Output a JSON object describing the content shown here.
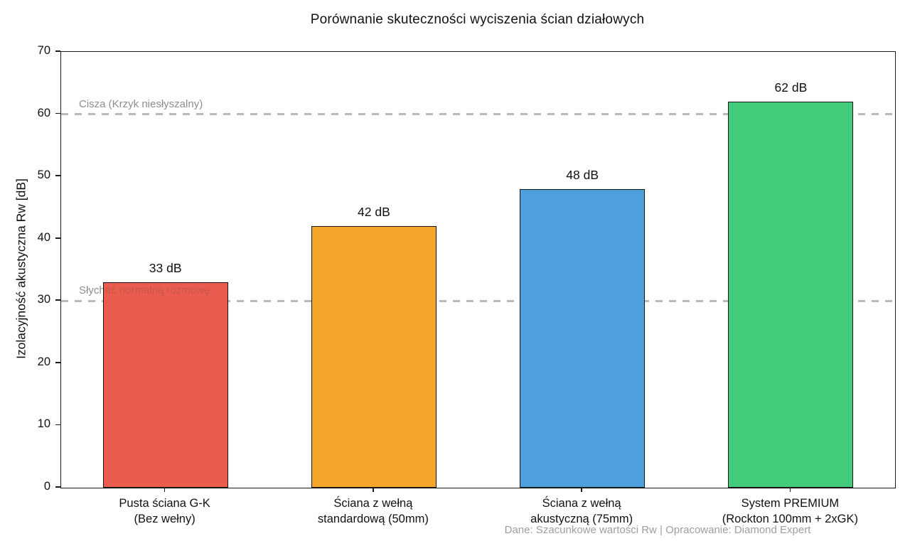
{
  "chart_data": {
    "type": "bar",
    "title": "Porównanie skuteczności wyciszenia ścian działowych",
    "xlabel": "",
    "ylabel": "Izolacyjność akustyczna Rw [dB]",
    "ylim": [
      0,
      70
    ],
    "yticks": [
      0,
      10,
      20,
      30,
      40,
      50,
      60,
      70
    ],
    "categories": [
      [
        "Pusta ściana G-K",
        "(Bez wełny)"
      ],
      [
        "Ściana z wełną",
        "standardową (50mm)"
      ],
      [
        "Ściana z wełną",
        "akustyczną (75mm)"
      ],
      [
        "System PREMIUM",
        "(Rockton 100mm + 2xGK)"
      ]
    ],
    "values": [
      33,
      42,
      48,
      62
    ],
    "bar_labels": [
      "33 dB",
      "42 dB",
      "48 dB",
      "62 dB"
    ],
    "bar_colors": [
      "#ea5c4d",
      "#f5a62a",
      "#4da0dc",
      "#42cb7a"
    ],
    "bar_edge_color": "#141414",
    "grid": false,
    "legend": "none",
    "reference_lines": [
      {
        "value": 60,
        "label": "Cisza (Krzyk niesłyszalny)"
      },
      {
        "value": 30,
        "label": "Słychać normalną rozmowę"
      }
    ],
    "reference_line_color": "#b9b9b9",
    "source_note": "Dane: Szacunkowe wartości Rw | Opracowanie: Diamond Expert"
  }
}
